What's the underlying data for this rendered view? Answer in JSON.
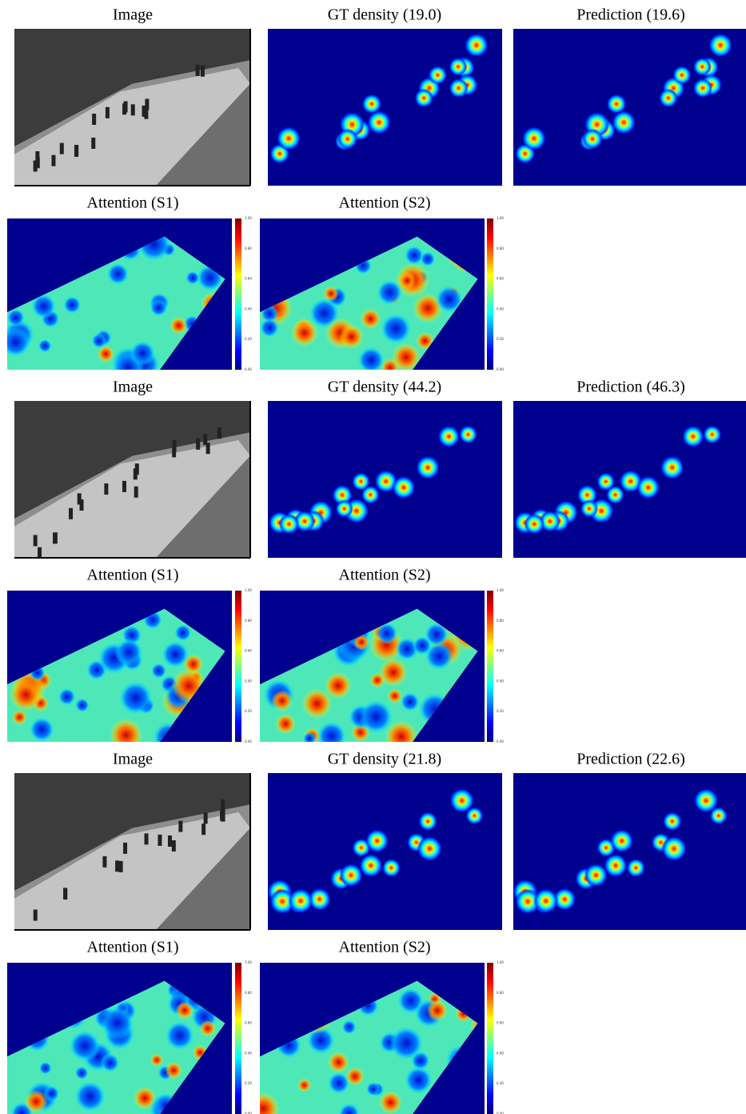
{
  "groups": [
    {
      "image": "Image",
      "gt_density": "GT density (19.0)",
      "prediction": "Prediction (19.6)",
      "attention_s1": "Attention (S1)",
      "attention_s2": "Attention (S2)"
    },
    {
      "image": "Image",
      "gt_density": "GT density (44.2)",
      "prediction": "Prediction (46.3)",
      "attention_s1": "Attention (S1)",
      "attention_s2": "Attention (S2)"
    },
    {
      "image": "Image",
      "gt_density": "GT density (21.8)",
      "prediction": "Prediction (22.6)",
      "attention_s1": "Attention (S1)",
      "attention_s2": "Attention (S2)"
    }
  ],
  "colorbar_ticks": [
    "0.00",
    "0.20",
    "0.40",
    "0.60",
    "0.80",
    "1.00"
  ]
}
